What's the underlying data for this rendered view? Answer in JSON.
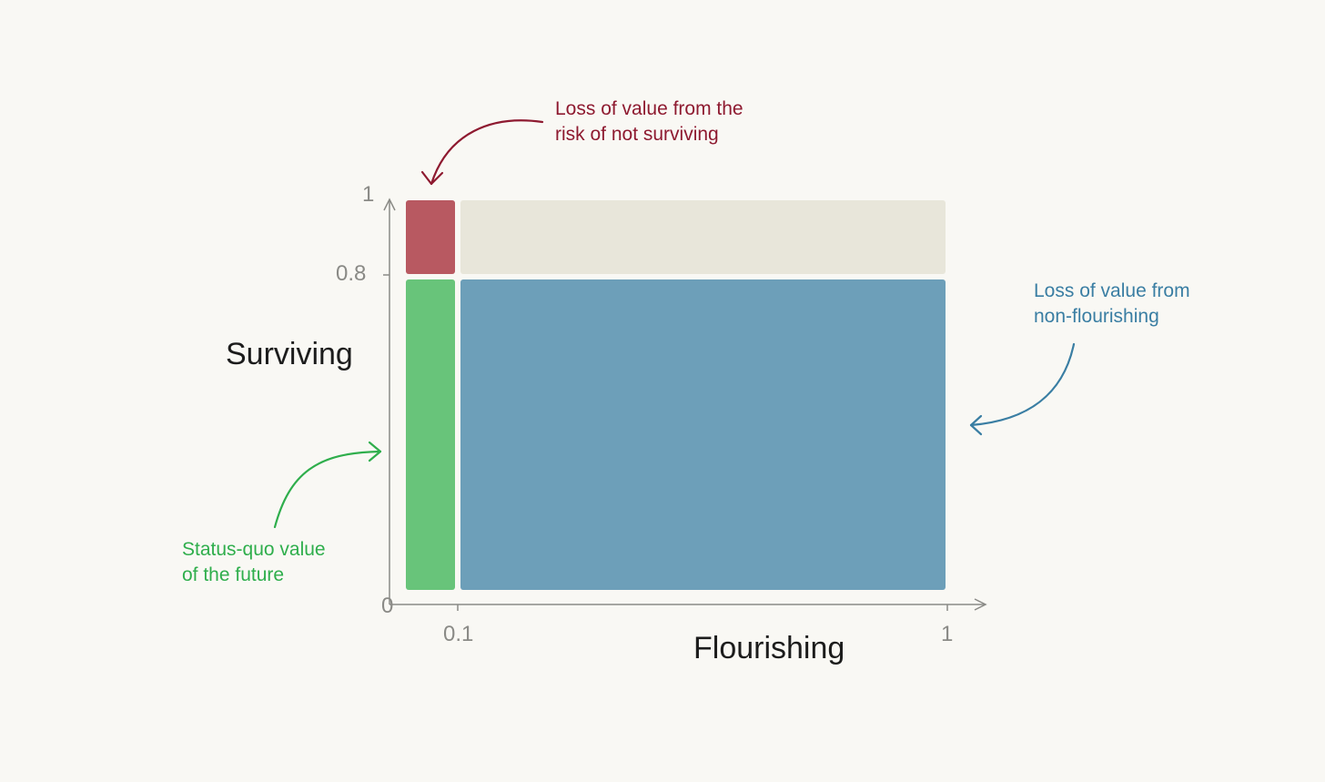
{
  "axes": {
    "y_title": "Surviving",
    "x_title": "Flourishing",
    "y_ticks": [
      "1",
      "0.8",
      "0"
    ],
    "x_ticks": [
      "0.1",
      "1"
    ]
  },
  "regions": {
    "survival_risk_loss": {
      "color": "#b85961",
      "x_range": [
        0,
        0.1
      ],
      "y_range": [
        0.8,
        1
      ]
    },
    "unreachable": {
      "color": "#e8e6da",
      "x_range": [
        0.1,
        1
      ],
      "y_range": [
        0.8,
        1
      ]
    },
    "status_quo_value": {
      "color": "#68c47a",
      "x_range": [
        0,
        0.1
      ],
      "y_range": [
        0,
        0.8
      ]
    },
    "non_flourishing_loss": {
      "color": "#6d9fb9",
      "x_range": [
        0.1,
        1
      ],
      "y_range": [
        0,
        0.8
      ]
    }
  },
  "annotations": {
    "risk": {
      "lines": [
        "Loss of value from the",
        "risk of not surviving"
      ],
      "color": "#8e1a30"
    },
    "non_flourishing": {
      "lines": [
        "Loss of value from",
        "non-flourishing"
      ],
      "color": "#3a7ea3"
    },
    "status_quo": {
      "lines": [
        "Status-quo value",
        "of the future"
      ],
      "color": "#2fae4c"
    }
  },
  "axis_color": "#8a8a86"
}
